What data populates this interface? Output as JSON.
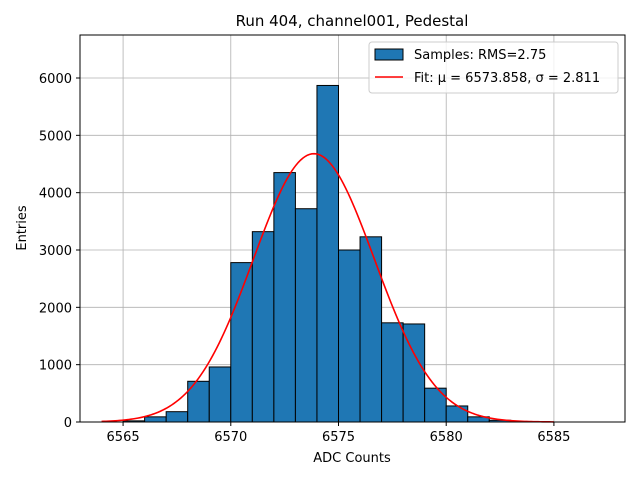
{
  "chart_data": {
    "type": "bar",
    "title": "Run 404, channel001, Pedestal",
    "xlabel": "ADC Counts",
    "ylabel": "Entries",
    "xlim": [
      6563.0,
      6588.3
    ],
    "ylim": [
      0,
      6750
    ],
    "xticks": [
      6565,
      6570,
      6575,
      6580,
      6585
    ],
    "yticks": [
      0,
      1000,
      2000,
      3000,
      4000,
      5000,
      6000
    ],
    "grid": true,
    "legend_position": "top-right",
    "histogram": {
      "name": "Samples: RMS=2.75",
      "bin_edges": [
        6565,
        6566,
        6567,
        6568,
        6569,
        6570,
        6571,
        6572,
        6573,
        6574,
        6575,
        6576,
        6577,
        6578,
        6579,
        6580,
        6581,
        6582,
        6583
      ],
      "counts": [
        20,
        90,
        180,
        710,
        960,
        2780,
        3320,
        4350,
        3720,
        5870,
        3000,
        3230,
        1730,
        1710,
        590,
        280,
        90,
        30
      ],
      "color": "#1f77b4"
    },
    "fit": {
      "name": "Fit: μ = 6573.858, σ = 2.811",
      "mu": 6573.858,
      "sigma": 2.811,
      "amplitude": 4680,
      "x_range": [
        6564,
        6585
      ],
      "color": "#ff0000"
    }
  }
}
